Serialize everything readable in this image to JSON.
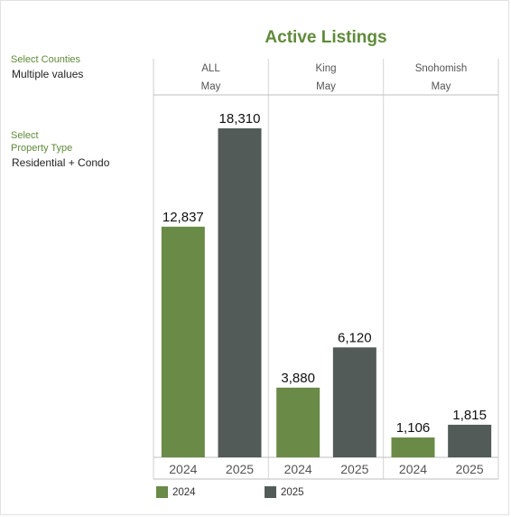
{
  "filters": {
    "counties_label": "Select Counties",
    "counties_value": "Multiple values",
    "property_label_1": "Select",
    "property_label_2": "Property Type",
    "property_value": "Residential + Condo"
  },
  "colors": {
    "y2024": "#6a8a47",
    "y2025": "#525b58",
    "accent": "#5f8a3a"
  },
  "chart_data": {
    "type": "bar",
    "title": "Active Listings",
    "panels": [
      {
        "county": "ALL",
        "month": "May",
        "categories": [
          "2024",
          "2025"
        ],
        "values": [
          12837,
          18310
        ],
        "labels": [
          "12,837",
          "18,310"
        ]
      },
      {
        "county": "King",
        "month": "May",
        "categories": [
          "2024",
          "2025"
        ],
        "values": [
          3880,
          6120
        ],
        "labels": [
          "3,880",
          "6,120"
        ]
      },
      {
        "county": "Snohomish",
        "month": "May",
        "categories": [
          "2024",
          "2025"
        ],
        "values": [
          1106,
          1815
        ],
        "labels": [
          "1,106",
          "1,815"
        ]
      }
    ],
    "legend": [
      {
        "name": "2024"
      },
      {
        "name": "2025"
      }
    ],
    "ylim": [
      0,
      18310
    ],
    "grid": false,
    "legend_position": "bottom-left"
  }
}
